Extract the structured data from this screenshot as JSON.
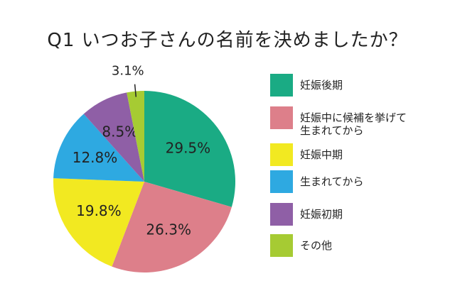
{
  "title": "Q1 いつお子さんの名前を決めましたか？",
  "chart_data": {
    "type": "pie",
    "title": "Q1 いつお子さんの名前を決めましたか？",
    "categories": [
      "妊娠後期",
      "妊娠中に候補を挙げて\n生まれてから",
      "妊娠中期",
      "生まれてから",
      "妊娠初期",
      "その他"
    ],
    "values": [
      29.5,
      26.3,
      19.8,
      12.8,
      8.5,
      3.1
    ],
    "labels": [
      "29.5%",
      "26.3%",
      "19.8%",
      "12.8%",
      "8.5%",
      "3.1%"
    ],
    "colors": [
      "#1aab84",
      "#dd7f8a",
      "#f2e921",
      "#2ea9e1",
      "#8f5fa6",
      "#a6cb33"
    ],
    "start": "top",
    "direction": "clockwise",
    "legend_position": "right"
  }
}
